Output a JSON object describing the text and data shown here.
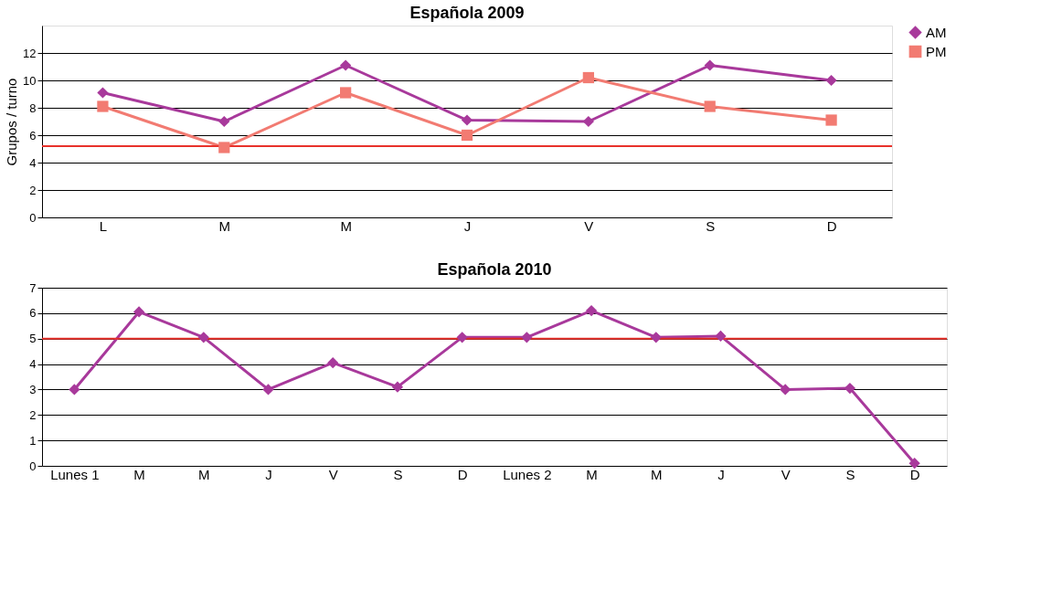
{
  "chart_data": [
    {
      "type": "line",
      "title": "Española 2009",
      "ylabel": "Grupos / turno",
      "categories": [
        "L",
        "M",
        "M",
        "J",
        "V",
        "S",
        "D"
      ],
      "series": [
        {
          "name": "AM",
          "color": "#a8399b",
          "marker": "diamond",
          "values": [
            9.1,
            7,
            11.1,
            7.1,
            7,
            11.1,
            10
          ]
        },
        {
          "name": "PM",
          "color": "#f27b72",
          "marker": "square",
          "values": [
            8.1,
            5.1,
            9.1,
            6,
            10.2,
            8.1,
            7.1
          ]
        }
      ],
      "ylim": [
        0,
        14
      ],
      "yticks": [
        0,
        2,
        4,
        6,
        8,
        10,
        12
      ],
      "grid": "y",
      "legend": "right",
      "ref_lines": [
        {
          "axis": "y",
          "value": 5.2,
          "color": "#e8322b"
        }
      ]
    },
    {
      "type": "line",
      "title": "Española 2010",
      "categories": [
        "Lunes 1",
        "M",
        "M",
        "J",
        "V",
        "S",
        "D",
        "Lunes 2",
        "M",
        "M",
        "J",
        "V",
        "S",
        "D"
      ],
      "series": [
        {
          "color": "#a8399b",
          "marker": "diamond",
          "values": [
            3,
            6.05,
            5.05,
            3,
            4.05,
            3.1,
            5.05,
            5.05,
            6.1,
            5.05,
            5.1,
            3,
            3.05,
            0.1
          ]
        }
      ],
      "ylim": [
        0,
        7
      ],
      "yticks": [
        0,
        1,
        2,
        3,
        4,
        5,
        6,
        7
      ],
      "grid": "y",
      "legend": false,
      "ref_lines": [
        {
          "axis": "y",
          "value": 5,
          "color": "#e8322b"
        }
      ]
    }
  ]
}
